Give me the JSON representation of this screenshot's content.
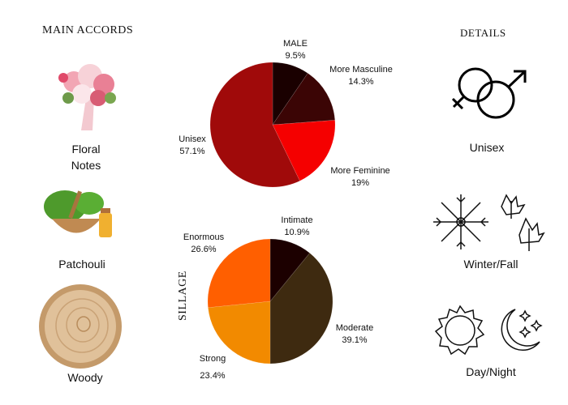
{
  "accords": {
    "title": "MAIN ACCORDS",
    "items": [
      {
        "label_line1": "Floral",
        "label_line2": "Notes",
        "icon": "flower-bouquet-image"
      },
      {
        "label_line1": "Patchouli",
        "icon": "patchouli-herbs-image"
      },
      {
        "label_line1": "Woody",
        "icon": "wood-slice-image"
      }
    ]
  },
  "details": {
    "title": "DETAILS",
    "items": [
      {
        "label": "Unisex",
        "icon": "gender-symbols-icon"
      },
      {
        "label": "Winter/Fall",
        "icon": "snowflake-maple-leaves-icon"
      },
      {
        "label": "Day/Night",
        "icon": "sun-moon-icon"
      }
    ]
  },
  "chart_data": [
    {
      "type": "pie",
      "title": "",
      "categories": [
        "MALE",
        "More Masculine",
        "More Feminine",
        "Unisex"
      ],
      "values": [
        9.5,
        14.3,
        19,
        57.1
      ],
      "value_labels": [
        "9.5%",
        "14.3%",
        "19%",
        "57.1%"
      ],
      "colors": [
        "#1a0000",
        "#3b0505",
        "#f50000",
        "#a00a0a"
      ],
      "start": "top",
      "direction": "clockwise"
    },
    {
      "type": "pie",
      "title": "SILLAGE",
      "categories": [
        "Intimate",
        "Moderate",
        "Strong",
        "Enormous"
      ],
      "values": [
        10.9,
        39.1,
        23.4,
        26.6
      ],
      "value_labels": [
        "10.9%",
        "39.1%",
        "23.4%",
        "26.6%"
      ],
      "colors": [
        "#1c0000",
        "#3e2a10",
        "#f28a00",
        "#ff5f00"
      ],
      "start": "top",
      "direction": "clockwise"
    }
  ]
}
